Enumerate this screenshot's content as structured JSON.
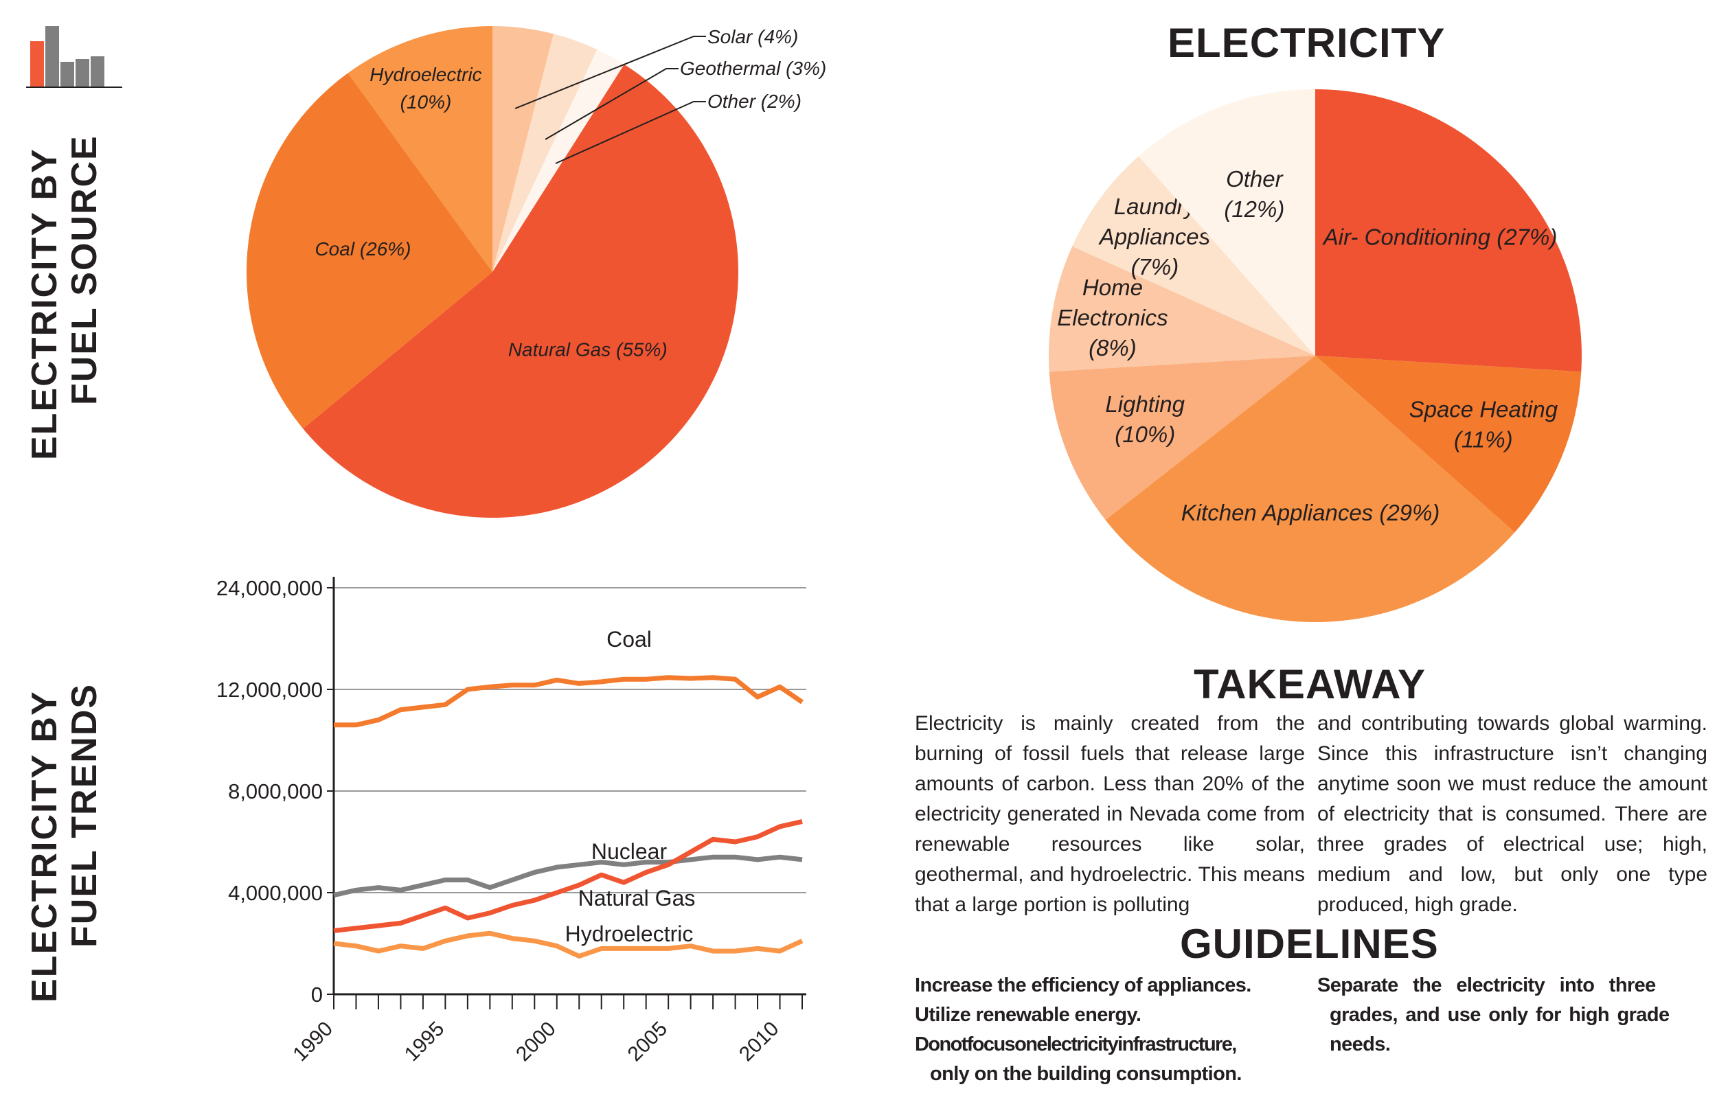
{
  "logo": {
    "name": "bar-chart-logo",
    "colors": [
      "#f15a38",
      "#7f7f7f",
      "#7f7f7f",
      "#7f7f7f",
      "#7f7f7f"
    ]
  },
  "side_titles": {
    "fuel_source": {
      "line1": "ELECTRICITY BY",
      "line2": "FUEL SOURCE"
    },
    "fuel_trends": {
      "line1": "ELECTRICITY BY",
      "line2": "FUEL TRENDS"
    }
  },
  "headings": {
    "electricity": "ELECTRICITY",
    "takeaway": "TAKEAWAY",
    "guidelines": "GUIDELINES"
  },
  "takeaway": {
    "col1": "Electricity is mainly created from the burning of fossil fuels that release large amounts of carbon. Less than 20% of the electricity generated in Nevada come from renewable resources like solar, geothermal, and hydroelectric. This means that a large portion is polluting",
    "col2": "and contributing towards global warming. Since this infrastructure isn’t changing anytime soon we must reduce the amount of electricity that is consumed. There are three grades of electrical use; high, medium and low, but only one type produced, high grade."
  },
  "guidelines": {
    "col1": [
      "Increase the efficiency of appliances.",
      "Utilize renewable energy.",
      "Donotfocusonelectricityinfrastructure,",
      "only on the building consumption."
    ],
    "col2": [
      "Separate the electricity into three",
      "grades, and use only for high grade",
      "needs."
    ]
  },
  "chart_data": [
    {
      "type": "pie",
      "title": "ELECTRICITY BY FUEL SOURCE",
      "slices": [
        {
          "label": "Natural Gas (55%)",
          "value": 55,
          "color": "#f05532"
        },
        {
          "label": "Coal (26%)",
          "value": 26,
          "color": "#f47b2d"
        },
        {
          "label": "Hydroelectric",
          "label2": "(10%)",
          "value": 10,
          "color": "#f99647"
        },
        {
          "label": "Solar (4%)",
          "value": 4,
          "color": "#fcc39a"
        },
        {
          "label": "Geothermal (3%)",
          "value": 3,
          "color": "#fde0c9"
        },
        {
          "label": "Other (2%)",
          "value": 2,
          "color": "#fef5ee"
        }
      ]
    },
    {
      "type": "pie",
      "title": "ELECTRICITY",
      "slices": [
        {
          "lines": [
            "Air- Conditioning (27%)"
          ],
          "value": 27,
          "color": "#ef5331"
        },
        {
          "lines": [
            "Space Heating",
            "(11%)"
          ],
          "value": 11,
          "color": "#f47a2e"
        },
        {
          "lines": [
            "Kitchen Appliances (29%)"
          ],
          "value": 29,
          "color": "#f89447"
        },
        {
          "lines": [
            "Lighting",
            "(10%)"
          ],
          "value": 10,
          "color": "#fbae7e"
        },
        {
          "lines": [
            "Home",
            "Electronics",
            "(8%)"
          ],
          "value": 8,
          "color": "#fcc8a5"
        },
        {
          "lines": [
            "Laundry",
            "Appliances",
            "(7%)"
          ],
          "value": 7,
          "color": "#fde2cc"
        },
        {
          "lines": [
            "Other",
            "(12%)"
          ],
          "value": 12,
          "color": "#fef4ea"
        }
      ]
    },
    {
      "type": "line",
      "title": "ELECTRICITY BY FUEL TRENDS",
      "x": [
        1990,
        1991,
        1992,
        1993,
        1994,
        1995,
        1996,
        1997,
        1998,
        1999,
        2000,
        2001,
        2002,
        2003,
        2004,
        2005,
        2006,
        2007,
        2008,
        2009,
        2010,
        2011
      ],
      "xticks": [
        1990,
        1995,
        2000,
        2005,
        2010
      ],
      "yticks": [
        0,
        4000000,
        8000000,
        12000000,
        24000000
      ],
      "ytick_labels": [
        "0",
        "4,000,000",
        "8,000,000",
        "12,000,000",
        "24,000,000"
      ],
      "y_break": {
        "between": [
          12000000,
          24000000
        ],
        "note": "axis section from 12,000,000 to 24,000,000 drawn at the same spacing as lower ticks"
      },
      "series": [
        {
          "name": "Coal",
          "color": "#f47b2d",
          "values": [
            10600000,
            10600000,
            10800000,
            11200000,
            11300000,
            11400000,
            12000000,
            12300000,
            12500000,
            12500000,
            13100000,
            12700000,
            12900000,
            13200000,
            13200000,
            13400000,
            13300000,
            13400000,
            13200000,
            11700000,
            12300000,
            11500000
          ]
        },
        {
          "name": "Nuclear",
          "color": "#808080",
          "values": [
            3900000,
            4100000,
            4200000,
            4100000,
            4300000,
            4500000,
            4500000,
            4200000,
            4500000,
            4800000,
            5000000,
            5100000,
            5200000,
            5100000,
            5200000,
            5200000,
            5300000,
            5400000,
            5400000,
            5300000,
            5400000,
            5300000
          ]
        },
        {
          "name": "Natural Gas",
          "color": "#f05532",
          "values": [
            2500000,
            2600000,
            2700000,
            2800000,
            3100000,
            3400000,
            3000000,
            3200000,
            3500000,
            3700000,
            4000000,
            4300000,
            4700000,
            4400000,
            4800000,
            5100000,
            5600000,
            6100000,
            6000000,
            6200000,
            6600000,
            6800000
          ]
        },
        {
          "name": "Hydroelectric",
          "color": "#f99647",
          "values": [
            2000000,
            1900000,
            1700000,
            1900000,
            1800000,
            2100000,
            2300000,
            2400000,
            2200000,
            2100000,
            1900000,
            1500000,
            1800000,
            1800000,
            1800000,
            1800000,
            1900000,
            1700000,
            1700000,
            1800000,
            1700000,
            2100000
          ]
        }
      ]
    }
  ]
}
